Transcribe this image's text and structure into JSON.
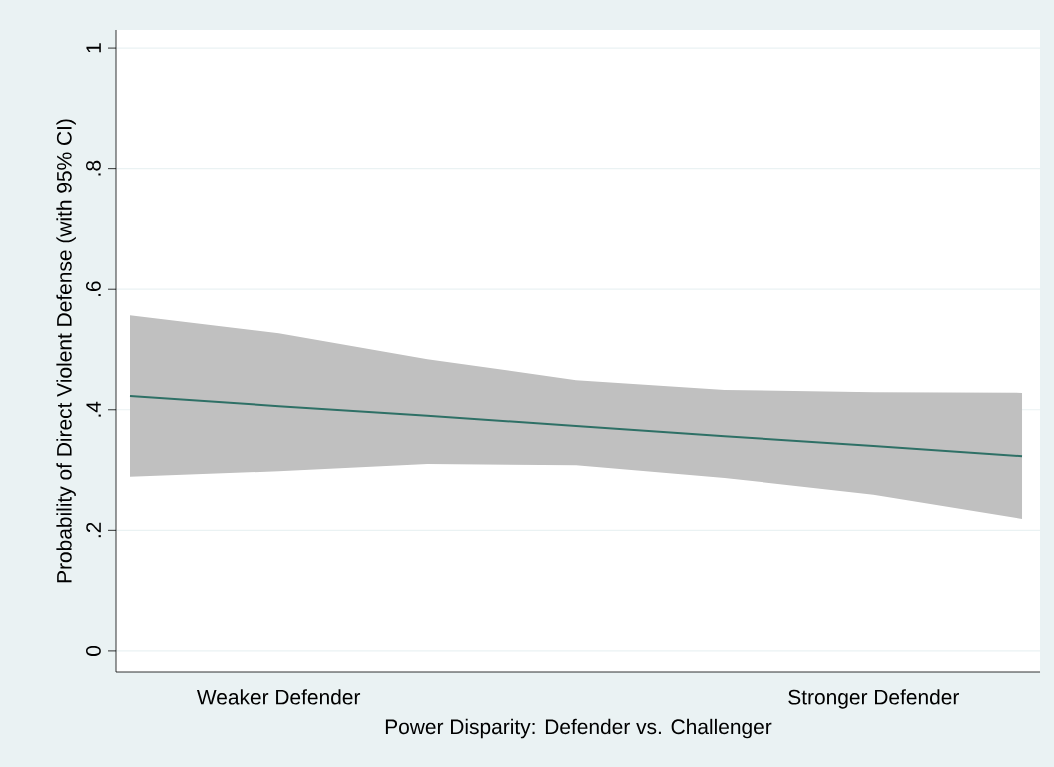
{
  "chart_data": {
    "type": "line",
    "xlabel": "Power Disparity: Defender vs. Challenger",
    "ylabel": "Probability of Direct Violent Defense (with 95% CI)",
    "categories": [
      null,
      "Weaker Defender",
      null,
      null,
      null,
      "Stronger Defender",
      null
    ],
    "series": [
      {
        "color": "#2e7066",
        "values": [
          0.423,
          0.406,
          0.39,
          0.373,
          0.356,
          0.34,
          0.323
        ],
        "lower": [
          0.289,
          0.298,
          0.31,
          0.308,
          0.287,
          0.259,
          0.219
        ],
        "upper": [
          0.557,
          0.527,
          0.484,
          0.449,
          0.433,
          0.429,
          0.428
        ]
      }
    ],
    "ylim": [
      -0.035,
      1.03
    ],
    "yticks": [
      0,
      {
        "value": 0.2,
        "label": ".2"
      },
      {
        "value": 0.4,
        "label": ".4"
      },
      {
        "value": 0.6,
        "label": ".6"
      },
      {
        "value": 0.8,
        "label": ".8"
      },
      1
    ],
    "grid": "y"
  }
}
